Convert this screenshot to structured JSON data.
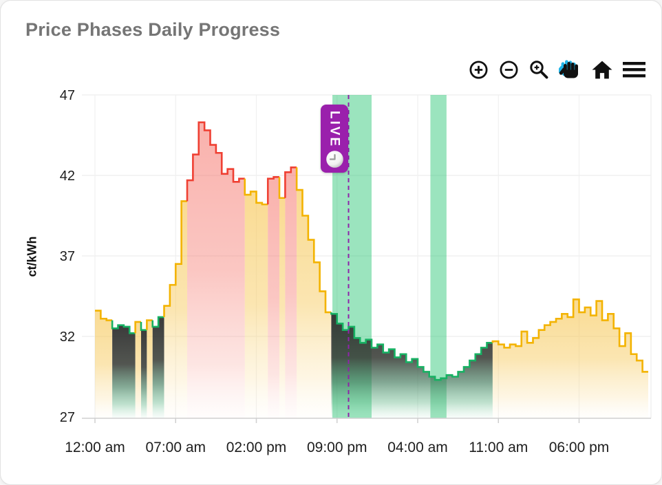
{
  "page": {
    "title": "Price Phases Daily Progress"
  },
  "toolbar": {
    "icons": [
      "zoom-in-icon",
      "zoom-out-icon",
      "box-zoom-icon",
      "pan-icon",
      "home-icon",
      "menu-icon"
    ],
    "active_icon": "pan-icon",
    "icon_color": "#111111",
    "active_highlight": "#1fb4e8"
  },
  "live_marker": {
    "label": "LIVE",
    "badge_color": "#9a20ac",
    "line_color": "#8e24aa",
    "position_hour": 22
  },
  "chart_data": {
    "type": "area",
    "title": "Price Phases Daily Progress",
    "xlabel": "",
    "ylabel": "ct/kWh",
    "ylim": [
      27,
      47
    ],
    "y_ticks": [
      27,
      32,
      37,
      42,
      47
    ],
    "x_ticklabels": [
      "12:00 am",
      "07:00 am",
      "02:00 pm",
      "09:00 pm",
      "04:00 am",
      "11:00 am",
      "06:00 pm"
    ],
    "x_tick_hours": [
      0,
      7,
      14,
      21,
      28,
      35,
      42
    ],
    "x_range_hours": [
      0,
      48
    ],
    "step_hours": 0.5,
    "grid": true,
    "phase_colors": {
      "normal": "#f3b300",
      "expensive": "#ef4033",
      "cheap": "#17b163"
    },
    "phase_legend": {
      "y": "normal",
      "r": "expensive",
      "g": "cheap"
    },
    "band_color": "rgba(16,190,100,0.42)",
    "highlight_bands": [
      {
        "start_hour": 20.6,
        "end_hour": 24.0
      },
      {
        "start_hour": 29.1,
        "end_hour": 30.5
      }
    ],
    "live_hour": 22,
    "series": [
      {
        "name": "price",
        "unit": "ct/kWh",
        "values": [
          33.6,
          33.1,
          33.0,
          32.5,
          32.7,
          32.6,
          32.2,
          32.9,
          32.4,
          33.0,
          32.6,
          33.2,
          33.9,
          35.2,
          36.5,
          40.4,
          41.7,
          43.3,
          45.3,
          44.8,
          43.9,
          43.4,
          42.1,
          42.4,
          41.6,
          41.8,
          40.8,
          41.0,
          40.3,
          40.2,
          41.8,
          41.9,
          40.6,
          42.2,
          42.5,
          41.1,
          39.5,
          38.0,
          36.6,
          34.8,
          33.5,
          33.4,
          32.8,
          32.4,
          32.6,
          31.9,
          31.6,
          31.8,
          31.3,
          31.5,
          31.0,
          31.2,
          30.7,
          30.9,
          30.4,
          30.6,
          30.1,
          29.8,
          29.5,
          29.3,
          29.4,
          29.6,
          29.5,
          29.8,
          30.1,
          30.5,
          30.9,
          31.3,
          31.6,
          31.7,
          31.5,
          31.3,
          31.5,
          31.4,
          32.3,
          31.6,
          31.9,
          32.4,
          32.7,
          32.9,
          33.1,
          33.4,
          33.2,
          34.3,
          33.5,
          33.8,
          33.3,
          34.2,
          33.0,
          33.4,
          32.5,
          31.4,
          32.2,
          30.9,
          30.5,
          29.8
        ],
        "phases": "yyyggggygyggyyyyrrrrrrrrrryyyyrryrryyyyyyggggggggggggggggggggggggggggyyyyyyyyyyyyyyyyyyyyyyyyyyy"
      }
    ]
  }
}
